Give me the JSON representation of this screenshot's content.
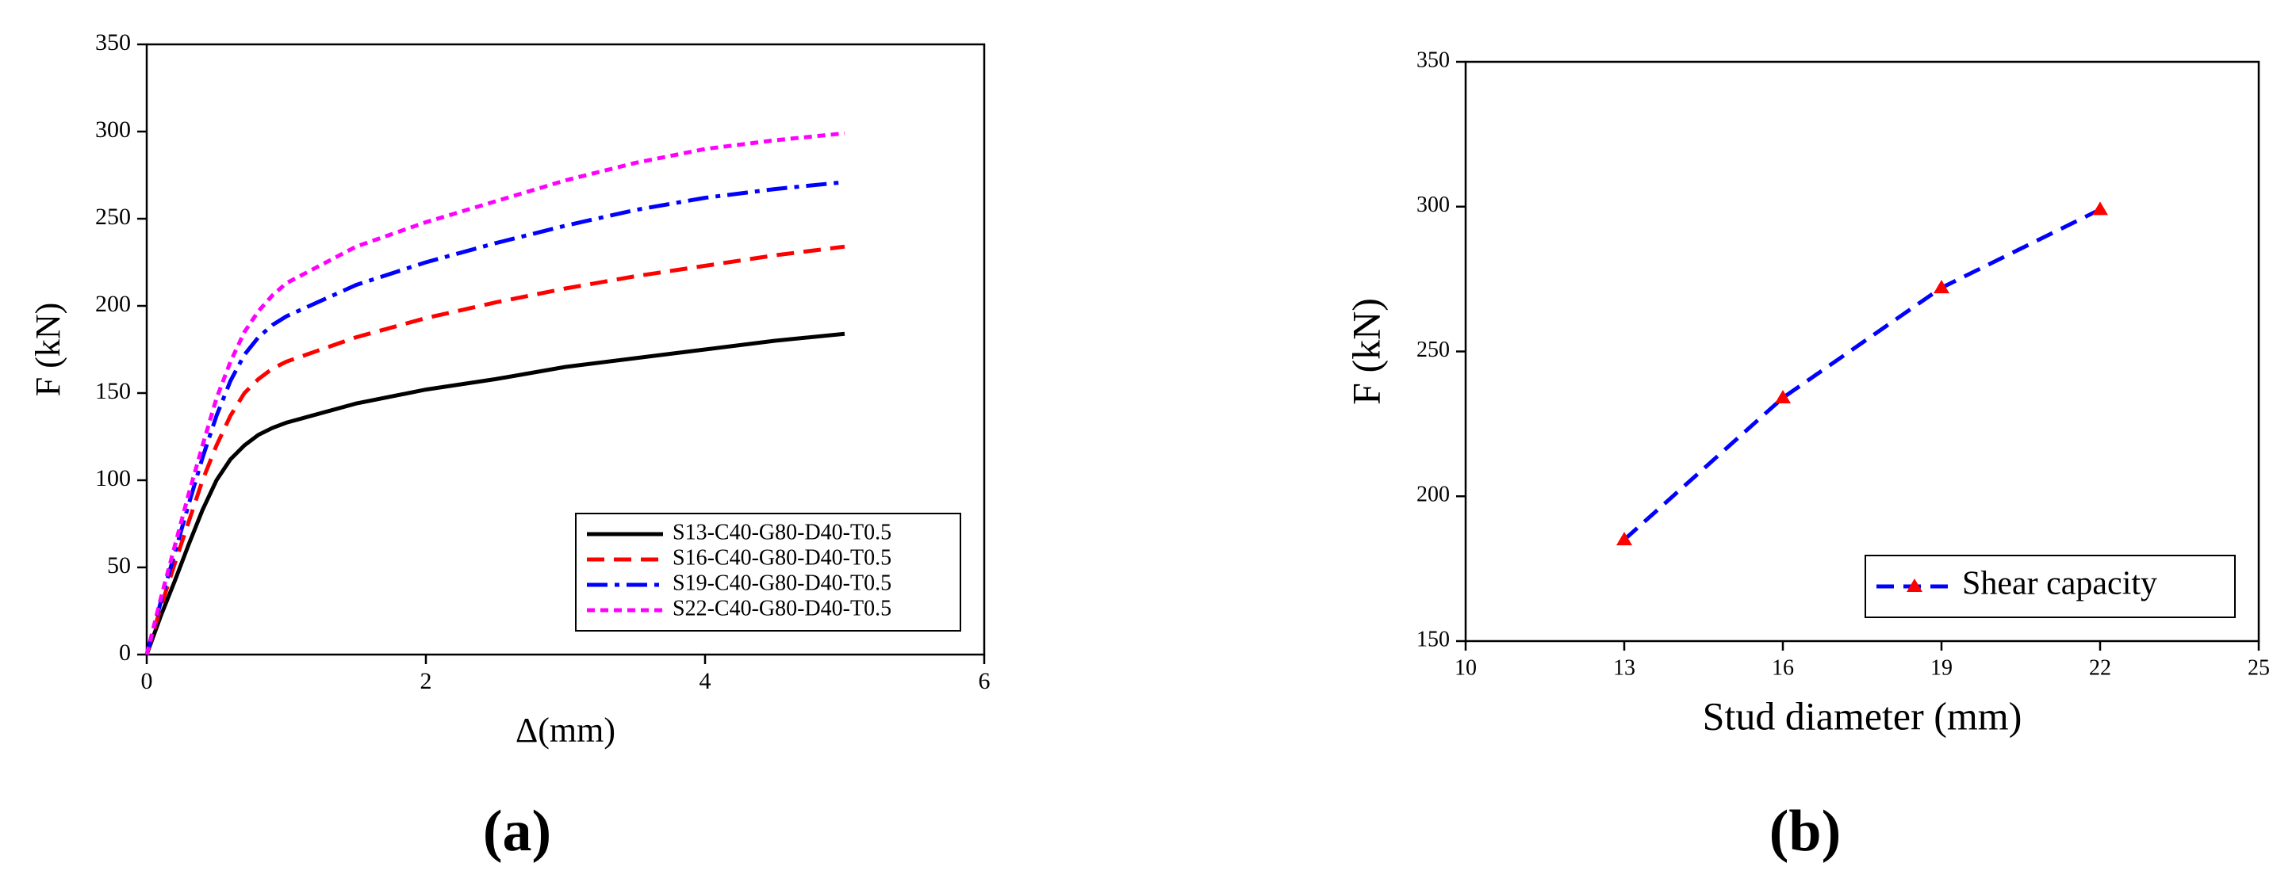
{
  "chart_data": [
    {
      "type": "line",
      "panel_label": "(a)",
      "xlabel": "Δ(mm)",
      "ylabel": "F (kN)",
      "x": [
        0,
        0.1,
        0.2,
        0.3,
        0.4,
        0.5,
        0.6,
        0.7,
        0.8,
        0.9,
        1.0,
        1.5,
        2,
        2.5,
        3,
        3.5,
        4,
        4.5,
        5
      ],
      "series": [
        {
          "name": "S13-C40-G80-D40-T0.5",
          "color": "#000000",
          "linestyle": "solid",
          "values": [
            0,
            22,
            42,
            63,
            83,
            100,
            112,
            120,
            126,
            130,
            133,
            144,
            152,
            158,
            165,
            170,
            175,
            180,
            184
          ]
        },
        {
          "name": "S16-C40-G80-D40-T0.5",
          "color": "#ff0000",
          "linestyle": "dashed",
          "values": [
            0,
            27,
            52,
            76,
            100,
            120,
            137,
            150,
            158,
            164,
            168,
            182,
            193,
            202,
            210,
            217,
            223,
            229,
            234
          ]
        },
        {
          "name": "S19-C40-G80-D40-T0.5",
          "color": "#0000ff",
          "linestyle": "dashdot",
          "values": [
            0,
            30,
            58,
            86,
            113,
            137,
            157,
            172,
            182,
            189,
            194,
            212,
            225,
            236,
            246,
            255,
            262,
            267,
            271
          ]
        },
        {
          "name": "S22-C40-G80-D40-T0.5",
          "color": "#ff00ff",
          "linestyle": "dotted",
          "values": [
            0,
            32,
            62,
            92,
            120,
            147,
            168,
            185,
            197,
            206,
            213,
            234,
            248,
            260,
            272,
            282,
            290,
            295,
            299
          ]
        }
      ],
      "xlim": [
        0,
        6
      ],
      "xticks": [
        0,
        2,
        4,
        6
      ],
      "ylim": [
        0,
        350
      ],
      "yticks": [
        0,
        50,
        100,
        150,
        200,
        250,
        300,
        350
      ],
      "legend": "lower right"
    },
    {
      "type": "line",
      "panel_label": "(b)",
      "xlabel": "Stud diameter (mm)",
      "ylabel": "F (kN)",
      "x": [
        13,
        16,
        19,
        22
      ],
      "series": [
        {
          "name": "Shear capacity",
          "color": "#0000ff",
          "linestyle": "dashed",
          "marker": "triangle",
          "marker_color": "#ff0000",
          "values": [
            185,
            234,
            272,
            299
          ]
        }
      ],
      "xlim": [
        10,
        25
      ],
      "xticks": [
        10,
        13,
        16,
        19,
        22,
        25
      ],
      "ylim": [
        150,
        350
      ],
      "yticks": [
        150,
        200,
        250,
        300,
        350
      ],
      "legend": "lower right"
    }
  ]
}
